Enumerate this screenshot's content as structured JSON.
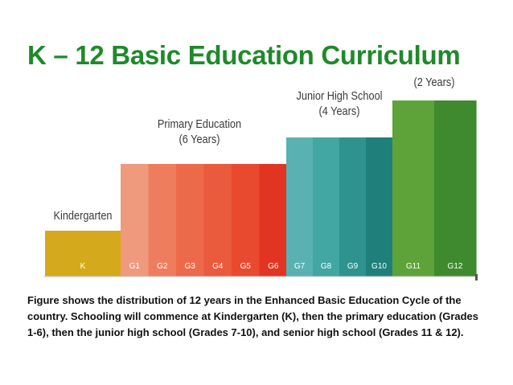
{
  "title": "K – 12 Basic Education Curriculum",
  "stages": [
    {
      "name": "Kindergarten",
      "duration": "",
      "grades": [
        "K"
      ],
      "colors": [
        "#d4aa1c"
      ]
    },
    {
      "name": "Primary Education",
      "duration": "(6 Years)",
      "grades": [
        "G1",
        "G2",
        "G3",
        "G4",
        "G5",
        "G6"
      ],
      "colors": [
        "#ef9a7c",
        "#ee7d5e",
        "#ec6a4a",
        "#ea5a3c",
        "#e84a30",
        "#e23422"
      ]
    },
    {
      "name": "Junior High School",
      "duration": "(4 Years)",
      "grades": [
        "G7",
        "G8",
        "G9",
        "G10"
      ],
      "colors": [
        "#59b2b1",
        "#42a6a3",
        "#2e938f",
        "#1f7f7b"
      ]
    },
    {
      "name": "",
      "duration": "(2 Years)",
      "grades": [
        "G11",
        "G12"
      ],
      "colors": [
        "#5ea33a",
        "#3f8a2f"
      ]
    }
  ],
  "caption": "Figure shows the distribution of 12 years in the Enhanced Basic Education Cycle of the country. Schooling will commence at Kindergarten (K), then the primary education (Grades 1-6), then the junior high school (Grades 7-10), and senior high school (Grades 11 & 12)."
}
